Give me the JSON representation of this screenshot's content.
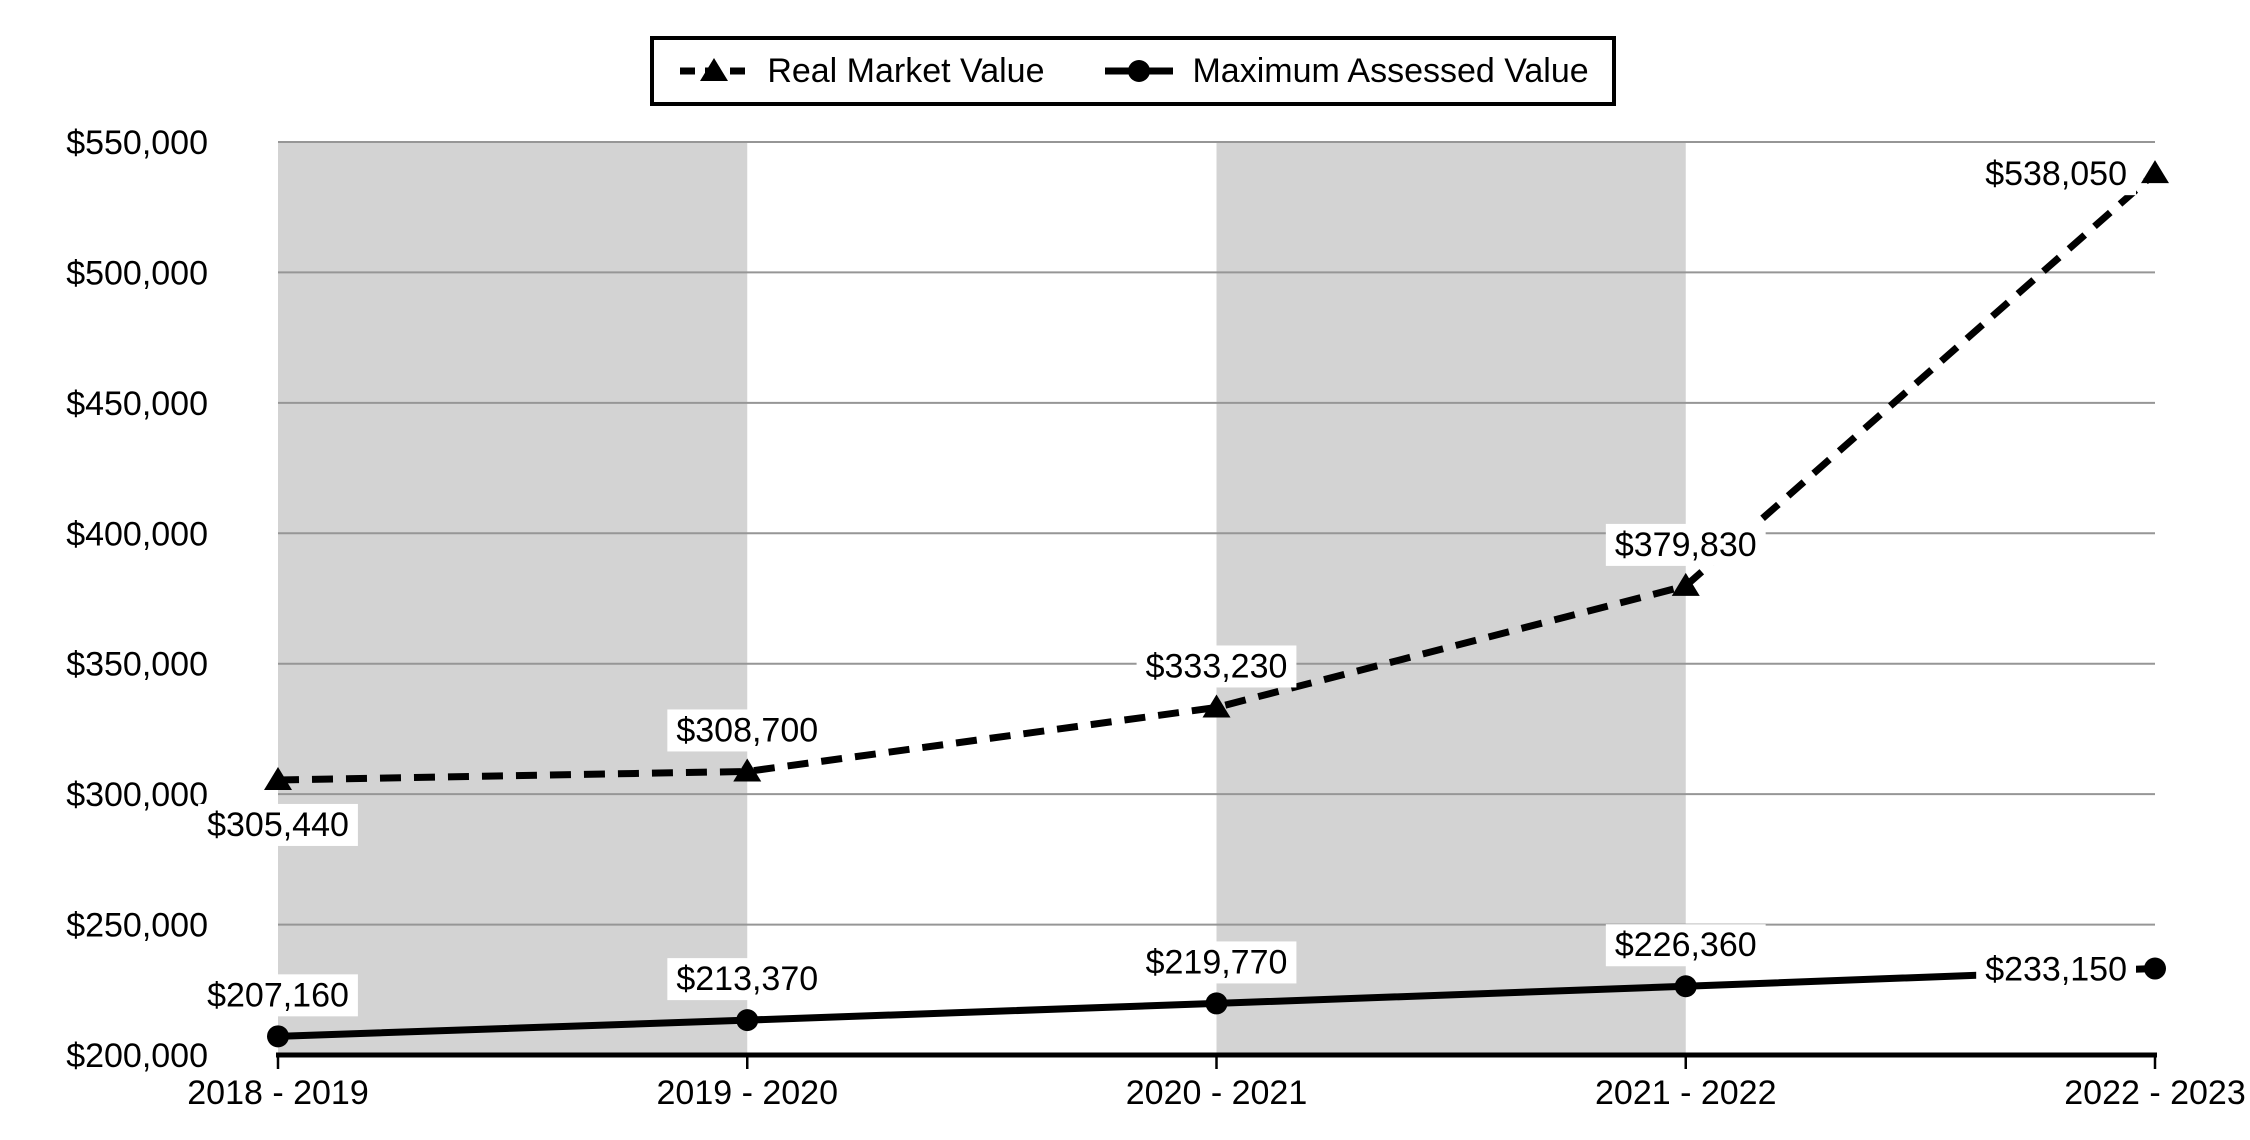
{
  "legend": {
    "items": [
      {
        "label": "Real Market Value",
        "line_style": "dashed",
        "marker": "triangle"
      },
      {
        "label": "Maximum Assessed Value",
        "line_style": "solid",
        "marker": "circle"
      }
    ]
  },
  "chart_data": {
    "type": "line",
    "categories": [
      "2018 - 2019",
      "2019 - 2020",
      "2020 - 2021",
      "2021 - 2022",
      "2022 - 2023"
    ],
    "series": [
      {
        "name": "Real Market Value",
        "line_style": "dashed",
        "marker": "triangle",
        "values": [
          305440,
          308700,
          333230,
          379830,
          538050
        ],
        "data_labels": [
          "$305,440",
          "$308,700",
          "$333,230",
          "$379,830",
          "$538,050"
        ],
        "label_positions": [
          "below",
          "above",
          "above",
          "above",
          "left"
        ]
      },
      {
        "name": "Maximum Assessed Value",
        "line_style": "solid",
        "marker": "circle",
        "values": [
          207160,
          213370,
          219770,
          226360,
          233150
        ],
        "data_labels": [
          "$207,160",
          "$213,370",
          "$219,770",
          "$226,360",
          "$233,150"
        ],
        "label_positions": [
          "above",
          "above",
          "above",
          "above",
          "left"
        ]
      }
    ],
    "ylim": [
      200000,
      550000
    ],
    "ytick_step": 50000,
    "ytick_labels": [
      "$200,000",
      "$250,000",
      "$300,000",
      "$350,000",
      "$400,000",
      "$450,000",
      "$500,000",
      "$550,000"
    ],
    "grid": "horizontal",
    "legend_position": "top-center",
    "shaded_column_bands": [
      [
        0,
        1
      ],
      [
        2,
        3
      ]
    ],
    "colors": {
      "series": "#000000",
      "gridline": "#969696",
      "band": "#d3d3d3",
      "axis": "#000000",
      "label_bg": "#ffffff",
      "background": "#ffffff"
    }
  }
}
